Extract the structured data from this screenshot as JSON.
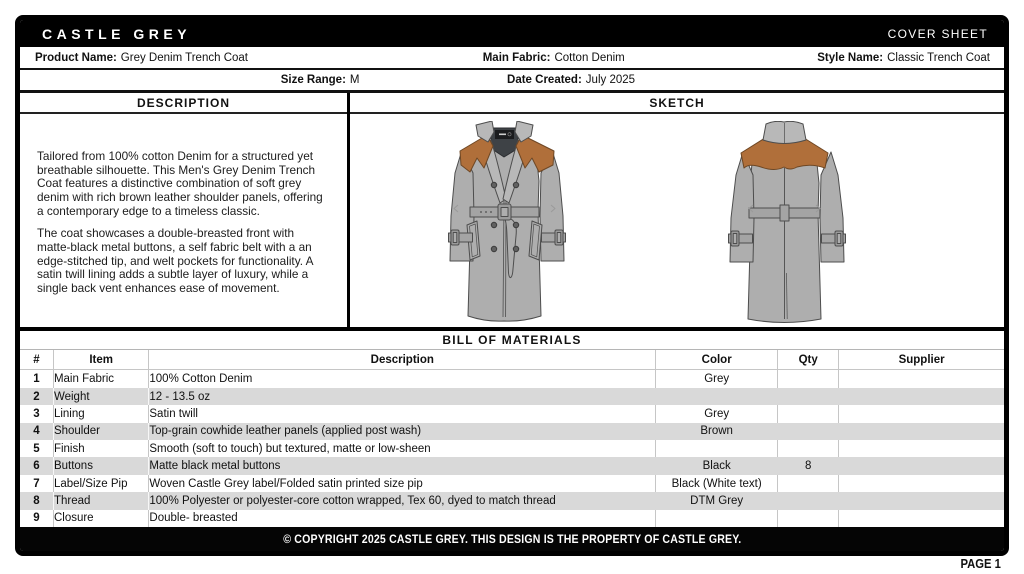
{
  "header": {
    "brand": "CASTLE GREY",
    "sheet_label": "COVER SHEET"
  },
  "info": {
    "product_name_label": "Product Name:",
    "product_name": "Grey Denim Trench Coat",
    "main_fabric_label": "Main Fabric:",
    "main_fabric": "Cotton Denim",
    "style_name_label": "Style Name:",
    "style_name": "Classic Trench Coat",
    "size_range_label": "Size Range:",
    "size_range": "M",
    "date_created_label": "Date Created:",
    "date_created": "July 2025"
  },
  "description": {
    "title": "DESCRIPTION",
    "paragraphs": [
      "Tailored from 100% cotton Denim for a structured yet breathable silhouette. This Men's Grey Denim Trench Coat features a distinctive combination of soft grey denim with rich brown leather shoulder panels, offering a contemporary edge to a timeless classic.",
      "The coat showcases a double-breasted front with matte-black metal buttons, a self fabric belt with a an edge-stitched tip, and welt pockets for functionality. A satin twill lining adds a subtle layer of luxury, while a single back vent enhances ease of movement."
    ]
  },
  "sketch": {
    "title": "SKETCH",
    "views": [
      "front",
      "back"
    ],
    "colors": {
      "body_grey": "#aeaeae",
      "collar_grey": "#b8b8b8",
      "collar_dark": "#3e4246",
      "leather_brown": "#b06f3a",
      "leather_outline": "#6e4724",
      "belt_grey": "#a4a4a4",
      "button_grey": "#616161",
      "outline": "#4d4d4d"
    }
  },
  "bom": {
    "title": "BILL OF MATERIALS",
    "columns": [
      "#",
      "Item",
      "Description",
      "Color",
      "Qty",
      "Supplier"
    ],
    "rows": [
      {
        "num": "1",
        "item": "Main Fabric",
        "description": "100% Cotton Denim",
        "color": "Grey",
        "qty": "",
        "supplier": ""
      },
      {
        "num": "2",
        "item": "Weight",
        "description": "12 - 13.5 oz",
        "color": "",
        "qty": "",
        "supplier": ""
      },
      {
        "num": "3",
        "item": "Lining",
        "description": "Satin twill",
        "color": "Grey",
        "qty": "",
        "supplier": ""
      },
      {
        "num": "4",
        "item": "Shoulder",
        "description": "Top-grain cowhide leather panels (applied post wash)",
        "color": "Brown",
        "qty": "",
        "supplier": ""
      },
      {
        "num": "5",
        "item": "Finish",
        "description": "Smooth (soft to touch) but textured, matte or low-sheen",
        "color": "",
        "qty": "",
        "supplier": ""
      },
      {
        "num": "6",
        "item": "Buttons",
        "description": "Matte black metal buttons",
        "color": "Black",
        "qty": "8",
        "supplier": ""
      },
      {
        "num": "7",
        "item": "Label/Size Pip",
        "description": "Woven Castle Grey label/Folded satin printed size pip",
        "color": "Black (White text)",
        "qty": "",
        "supplier": ""
      },
      {
        "num": "8",
        "item": "Thread",
        "description": "100% Polyester or polyester-core cotton wrapped, Tex 60, dyed to match thread",
        "color": "DTM Grey",
        "qty": "",
        "supplier": ""
      },
      {
        "num": "9",
        "item": "Closure",
        "description": "Double- breasted",
        "color": "",
        "qty": "",
        "supplier": ""
      }
    ]
  },
  "footer": {
    "copyright": "© COPYRIGHT 2025 CASTLE GREY. THIS DESIGN IS THE PROPERTY OF CASTLE GREY.",
    "page": "PAGE 1"
  }
}
